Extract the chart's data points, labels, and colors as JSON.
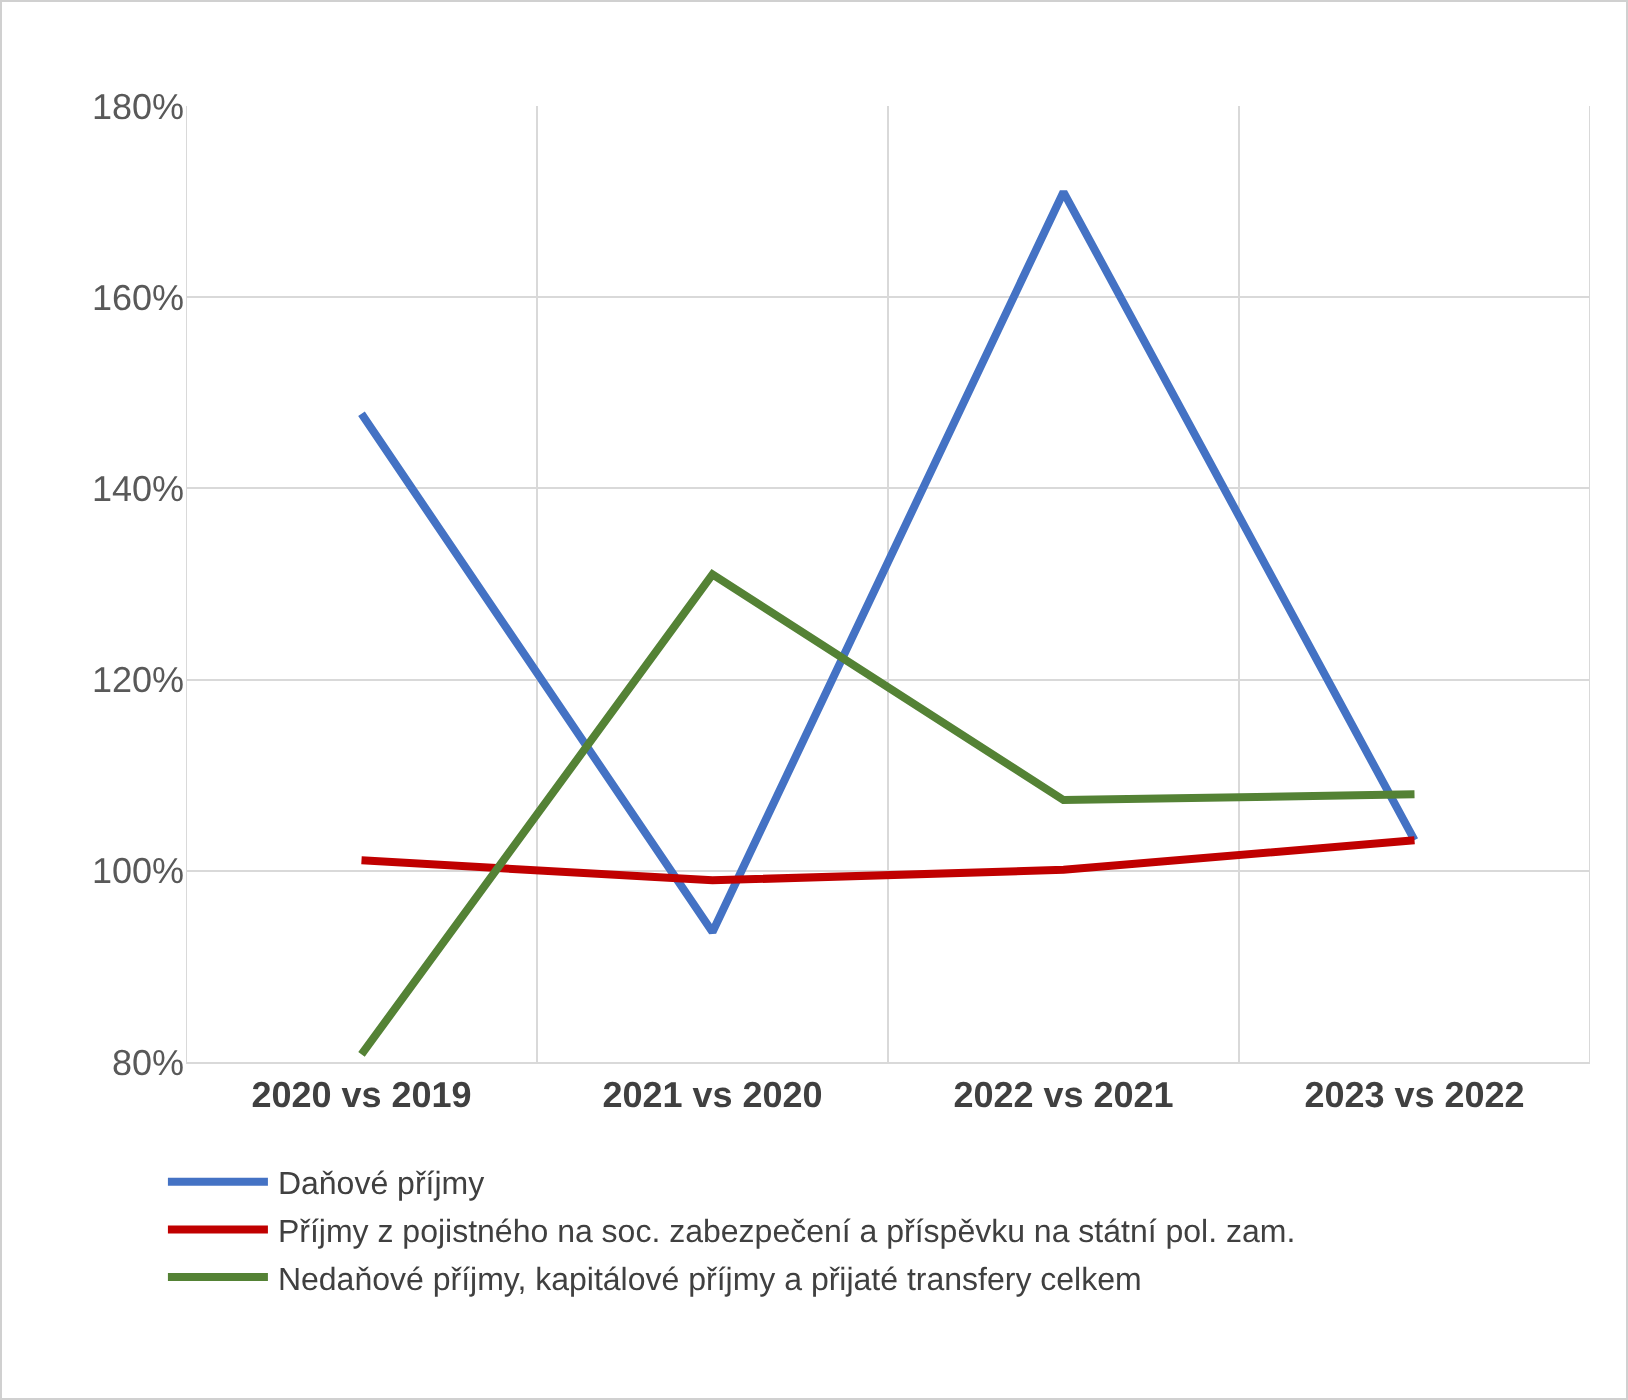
{
  "chart_data": {
    "type": "line",
    "categories": [
      "2020 vs 2019",
      "2021 vs 2020",
      "2022 vs 2021",
      "2023 vs 2022"
    ],
    "series": [
      {
        "name": "Daňové příjmy",
        "color": "#4472c4",
        "values": [
          147.8,
          93.6,
          171,
          103.2
        ]
      },
      {
        "name": "Příjmy z pojistného na soc. zabezpečení a příspěvku na státní pol. zam.",
        "color": "#c00000",
        "values": [
          101.1,
          99,
          100.1,
          103.2
        ]
      },
      {
        "name": "Nedaňové příjmy, kapitálové příjmy a přijaté transfery celkem",
        "color": "#548235",
        "values": [
          80.8,
          131,
          107.4,
          108
        ]
      }
    ],
    "ylim": [
      80,
      180
    ],
    "yticks": [
      {
        "value": 80,
        "label": "80%"
      },
      {
        "value": 100,
        "label": "100%"
      },
      {
        "value": 120,
        "label": "120%"
      },
      {
        "value": 140,
        "label": "140%"
      },
      {
        "value": 160,
        "label": "160%"
      },
      {
        "value": 180,
        "label": "180%"
      }
    ],
    "grid": true,
    "legend": "bottom",
    "marker": "none",
    "line_style": "solid"
  }
}
